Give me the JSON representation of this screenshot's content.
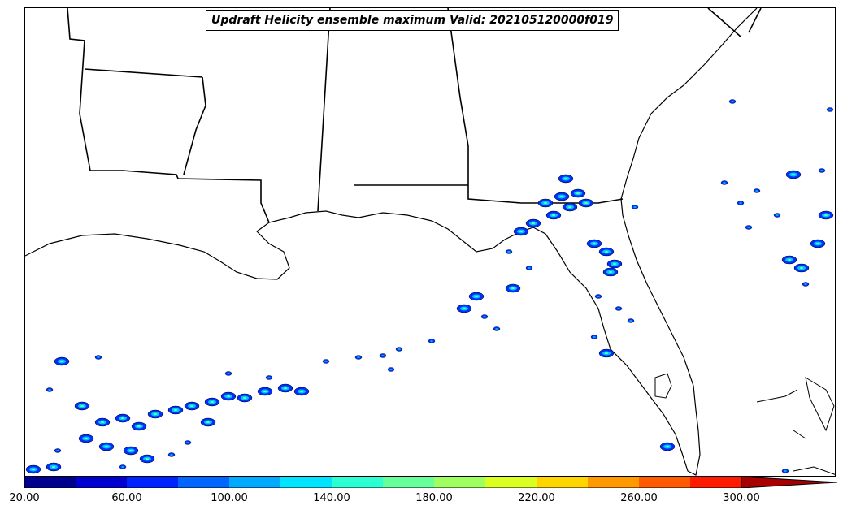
{
  "title": "Updraft Helicity ensemble maximum Valid: 202105120000f019",
  "colorbar": {
    "min": 20,
    "max": 300,
    "step": 20,
    "extend": "max",
    "colors": [
      "#00008f",
      "#0000d0",
      "#0022ff",
      "#0066ff",
      "#00aaff",
      "#00e4ff",
      "#2cffd2",
      "#66ff99",
      "#a0ff60",
      "#dcff22",
      "#ffd500",
      "#ff9900",
      "#ff5a00",
      "#ff1b00",
      "#a80000"
    ],
    "tick_labels": [
      "20.00",
      "60.00",
      "100.00",
      "140.00",
      "180.00",
      "220.00",
      "260.00",
      "300.00"
    ]
  }
}
